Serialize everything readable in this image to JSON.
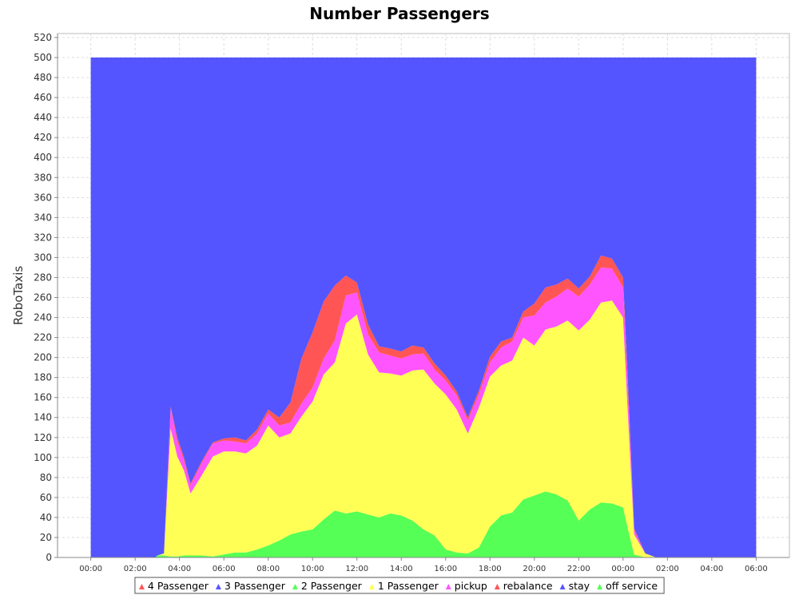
{
  "chart_data": {
    "type": "area",
    "stacked": true,
    "title": "Number Passengers",
    "xlabel": "",
    "ylabel": "RoboTaxis",
    "ylim": [
      0,
      524
    ],
    "yticks": [
      0,
      20,
      40,
      60,
      80,
      100,
      120,
      140,
      160,
      180,
      200,
      220,
      240,
      260,
      280,
      300,
      320,
      340,
      360,
      380,
      400,
      420,
      440,
      460,
      480,
      500,
      520
    ],
    "x_unit": "hours",
    "xlim": [
      -1.5,
      31.5
    ],
    "xticks": [
      0,
      2,
      4,
      6,
      8,
      10,
      12,
      14,
      16,
      18,
      20,
      22,
      24,
      26,
      28,
      30
    ],
    "xtick_labels": [
      "00:00",
      "02:00",
      "04:00",
      "06:00",
      "08:00",
      "10:00",
      "12:00",
      "14:00",
      "16:00",
      "18:00",
      "20:00",
      "22:00",
      "00:00",
      "02:00",
      "04:00",
      "06:00"
    ],
    "grid": true,
    "legend_position": "bottom",
    "x": [
      0,
      1,
      2,
      2.9,
      3,
      3.3,
      3.6,
      3.9,
      4.2,
      4.5,
      5,
      5.5,
      6,
      6.5,
      7,
      7.5,
      8,
      8.5,
      9,
      9.5,
      10,
      10.5,
      11,
      11.5,
      12,
      12.5,
      13,
      13.5,
      14,
      14.5,
      15,
      15.5,
      16,
      16.5,
      17,
      17.5,
      18,
      18.5,
      19,
      19.5,
      20,
      20.5,
      21,
      21.5,
      22,
      22.5,
      23,
      23.5,
      24,
      24.2,
      24.5,
      25,
      25.5,
      26,
      27,
      28,
      29,
      30
    ],
    "series": [
      {
        "name": "4 Passenger",
        "color": "#ff5555",
        "values": [
          0,
          0,
          0,
          0,
          0,
          0,
          0,
          0,
          0,
          0,
          0,
          0,
          0,
          0,
          0,
          0,
          0,
          0,
          0,
          0,
          0,
          0,
          0,
          0,
          0,
          0,
          0,
          0,
          0,
          0,
          0,
          0,
          0,
          0,
          0,
          0,
          0,
          0,
          0,
          0,
          0,
          0,
          0,
          0,
          0,
          0,
          0,
          0,
          0,
          0,
          0,
          0,
          0,
          0,
          0,
          0,
          0,
          0
        ]
      },
      {
        "name": "3 Passenger",
        "color": "#5555ff",
        "values": [
          0,
          0,
          0,
          0,
          0,
          0,
          0,
          0,
          0,
          0,
          0,
          0,
          0,
          0,
          0,
          0,
          0,
          0,
          0,
          0,
          0,
          0,
          0,
          0,
          0,
          0,
          0,
          0,
          0,
          0,
          0,
          0,
          0,
          0,
          0,
          0,
          0,
          0,
          0,
          0,
          0,
          0,
          0,
          0,
          0,
          0,
          0,
          0,
          0,
          0,
          0,
          0,
          0,
          0,
          0,
          0,
          0,
          0
        ]
      },
      {
        "name": "2 Passenger",
        "color": "#55ff55",
        "values": [
          0,
          0,
          0,
          0,
          2,
          2,
          1,
          1,
          2,
          2,
          2,
          1,
          3,
          5,
          5,
          8,
          12,
          17,
          23,
          26,
          28,
          38,
          47,
          44,
          46,
          43,
          40,
          44,
          42,
          37,
          28,
          22,
          8,
          5,
          4,
          10,
          31,
          42,
          45,
          58,
          62,
          66,
          63,
          57,
          37,
          48,
          55,
          54,
          50,
          30,
          3,
          0,
          0,
          0,
          0,
          0,
          0,
          0
        ]
      },
      {
        "name": "1 Passenger",
        "color": "#ffff55",
        "values": [
          0,
          0,
          0,
          0,
          0,
          2,
          128,
          100,
          85,
          62,
          80,
          100,
          103,
          101,
          99,
          104,
          120,
          103,
          101,
          115,
          128,
          145,
          148,
          190,
          197,
          160,
          145,
          140,
          140,
          150,
          160,
          152,
          155,
          143,
          120,
          140,
          150,
          150,
          152,
          162,
          150,
          162,
          168,
          180,
          190,
          190,
          200,
          203,
          190,
          120,
          20,
          4,
          0,
          0,
          0,
          0,
          0,
          0
        ]
      },
      {
        "name": "pickup",
        "color": "#ff55ff",
        "values": [
          0,
          0,
          0,
          0,
          0,
          0,
          20,
          15,
          10,
          8,
          12,
          13,
          11,
          10,
          10,
          12,
          12,
          12,
          11,
          13,
          14,
          16,
          22,
          28,
          22,
          20,
          20,
          18,
          17,
          16,
          16,
          14,
          14,
          14,
          13,
          13,
          14,
          18,
          19,
          20,
          30,
          27,
          30,
          32,
          34,
          35,
          35,
          32,
          30,
          24,
          4,
          0,
          0,
          0,
          0,
          0,
          0,
          0
        ]
      },
      {
        "name": "rebalance",
        "color": "#ff5555",
        "values": [
          0,
          0,
          0,
          0,
          0,
          0,
          2,
          4,
          3,
          2,
          2,
          1,
          2,
          4,
          3,
          4,
          4,
          8,
          20,
          45,
          55,
          57,
          55,
          20,
          10,
          10,
          6,
          7,
          7,
          9,
          6,
          6,
          5,
          4,
          3,
          4,
          6,
          6,
          4,
          6,
          12,
          15,
          12,
          10,
          8,
          8,
          12,
          10,
          10,
          10,
          2,
          0,
          0,
          0,
          0,
          0,
          0,
          0
        ]
      },
      {
        "name": "stay",
        "color": "#5555ff",
        "values": [
          500,
          500,
          500,
          500,
          498,
          496,
          349,
          380,
          400,
          426,
          404,
          385,
          381,
          380,
          383,
          372,
          352,
          360,
          345,
          301,
          275,
          244,
          228,
          218,
          225,
          267,
          289,
          291,
          294,
          288,
          290,
          306,
          318,
          334,
          360,
          333,
          299,
          284,
          280,
          254,
          246,
          230,
          227,
          221,
          231,
          219,
          198,
          201,
          220,
          316,
          471,
          496,
          500,
          500,
          500,
          500,
          500,
          500
        ]
      },
      {
        "name": "off service",
        "color": "#55ff55",
        "values": [
          0,
          0,
          0,
          0,
          0,
          0,
          0,
          0,
          0,
          0,
          0,
          0,
          0,
          0,
          0,
          0,
          0,
          0,
          0,
          0,
          0,
          0,
          0,
          0,
          0,
          0,
          0,
          0,
          0,
          0,
          0,
          0,
          0,
          0,
          0,
          0,
          0,
          0,
          0,
          0,
          0,
          0,
          0,
          0,
          0,
          0,
          0,
          0,
          0,
          0,
          0,
          0,
          0,
          0,
          0,
          0,
          0,
          0
        ]
      }
    ]
  }
}
